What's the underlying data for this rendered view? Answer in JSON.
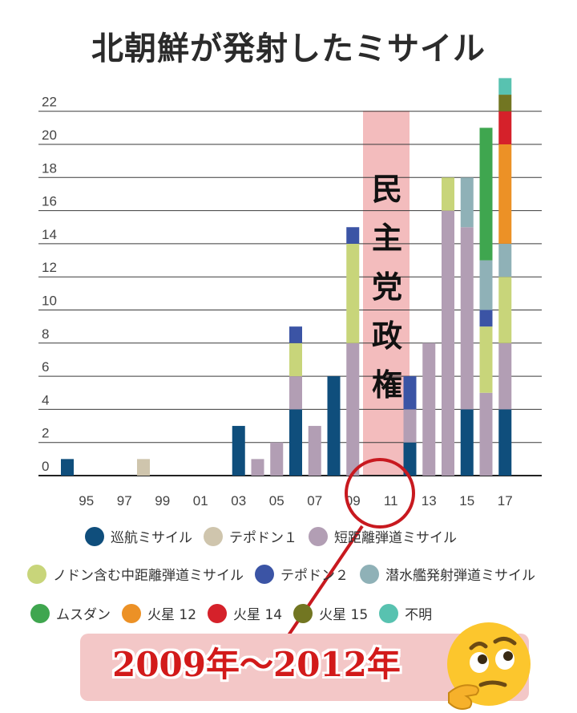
{
  "chart_data": {
    "type": "bar",
    "stacked": true,
    "title": "北朝鮮が発射したミサイル",
    "xlabel": "",
    "ylabel": "",
    "ylim": [
      0,
      23
    ],
    "grid": true,
    "legend_position": "bottom",
    "x_tick_labels": [
      "95",
      "97",
      "99",
      "01",
      "03",
      "05",
      "07",
      "09",
      "11",
      "13",
      "15",
      "17"
    ],
    "y_tick_labels": [
      "0",
      "2",
      "4",
      "6",
      "8",
      "10",
      "12",
      "14",
      "16",
      "18",
      "20",
      "22"
    ],
    "categories": [
      "1994",
      "1995",
      "1996",
      "1997",
      "1998",
      "1999",
      "2000",
      "2001",
      "2002",
      "2003",
      "2004",
      "2005",
      "2006",
      "2007",
      "2008",
      "2009",
      "2010",
      "2011",
      "2012",
      "2013",
      "2014",
      "2015",
      "2016",
      "2017"
    ],
    "series": [
      {
        "name": "巡航ミサイル",
        "color": "#0f4e7c",
        "values": [
          1,
          0,
          0,
          0,
          0,
          0,
          0,
          0,
          0,
          3,
          0,
          0,
          4,
          0,
          6,
          0,
          0,
          0,
          2,
          0,
          0,
          4,
          0,
          4
        ]
      },
      {
        "name": "テポドン１",
        "color": "#cfc5ad",
        "values": [
          0,
          0,
          0,
          0,
          1,
          0,
          0,
          0,
          0,
          0,
          0,
          0,
          0,
          0,
          0,
          0,
          0,
          0,
          0,
          0,
          0,
          0,
          0,
          0
        ]
      },
      {
        "name": "短距離弾道ミサイル",
        "color": "#b29eb4",
        "values": [
          0,
          0,
          0,
          0,
          0,
          0,
          0,
          0,
          0,
          0,
          1,
          2,
          2,
          3,
          0,
          8,
          0,
          0,
          2,
          8,
          16,
          11,
          5,
          4
        ]
      },
      {
        "name": "ノドン含む中距離弾道ミサイル",
        "color": "#c8d57a",
        "values": [
          0,
          0,
          0,
          0,
          0,
          0,
          0,
          0,
          0,
          0,
          0,
          0,
          2,
          0,
          0,
          6,
          0,
          0,
          0,
          0,
          2,
          0,
          4,
          4
        ]
      },
      {
        "name": "テポドン２",
        "color": "#3b54a5",
        "values": [
          0,
          0,
          0,
          0,
          0,
          0,
          0,
          0,
          0,
          0,
          0,
          0,
          1,
          0,
          0,
          1,
          0,
          0,
          2,
          0,
          0,
          0,
          1,
          0
        ]
      },
      {
        "name": "潜水艦発射弾道ミサイル",
        "color": "#8fb1b7",
        "values": [
          0,
          0,
          0,
          0,
          0,
          0,
          0,
          0,
          0,
          0,
          0,
          0,
          0,
          0,
          0,
          0,
          0,
          0,
          0,
          0,
          0,
          3,
          3,
          2
        ]
      },
      {
        "name": "ムスダン",
        "color": "#3fa64f",
        "values": [
          0,
          0,
          0,
          0,
          0,
          0,
          0,
          0,
          0,
          0,
          0,
          0,
          0,
          0,
          0,
          0,
          0,
          0,
          0,
          0,
          0,
          0,
          8,
          0
        ]
      },
      {
        "name": "火星 12",
        "color": "#ec9126",
        "values": [
          0,
          0,
          0,
          0,
          0,
          0,
          0,
          0,
          0,
          0,
          0,
          0,
          0,
          0,
          0,
          0,
          0,
          0,
          0,
          0,
          0,
          0,
          0,
          6
        ]
      },
      {
        "name": "火星 14",
        "color": "#d5212a",
        "values": [
          0,
          0,
          0,
          0,
          0,
          0,
          0,
          0,
          0,
          0,
          0,
          0,
          0,
          0,
          0,
          0,
          0,
          0,
          0,
          0,
          0,
          0,
          0,
          2
        ]
      },
      {
        "name": "火星 15",
        "color": "#727622",
        "values": [
          0,
          0,
          0,
          0,
          0,
          0,
          0,
          0,
          0,
          0,
          0,
          0,
          0,
          0,
          0,
          0,
          0,
          0,
          0,
          0,
          0,
          0,
          0,
          1
        ]
      },
      {
        "name": "不明",
        "color": "#58c2b0",
        "values": [
          0,
          0,
          0,
          0,
          0,
          0,
          0,
          0,
          0,
          0,
          0,
          0,
          0,
          0,
          0,
          0,
          0,
          0,
          0,
          0,
          0,
          0,
          0,
          1
        ]
      }
    ],
    "annotations": {
      "highlight_period": "2009–2012",
      "highlight_text": "民主党政権",
      "highlight_color": "#f2b5b6",
      "circle_color": "#c8191f",
      "callout_text": "2009年～2012年",
      "callout_color": "#d21a1a"
    }
  },
  "emoji": "thinking-face"
}
